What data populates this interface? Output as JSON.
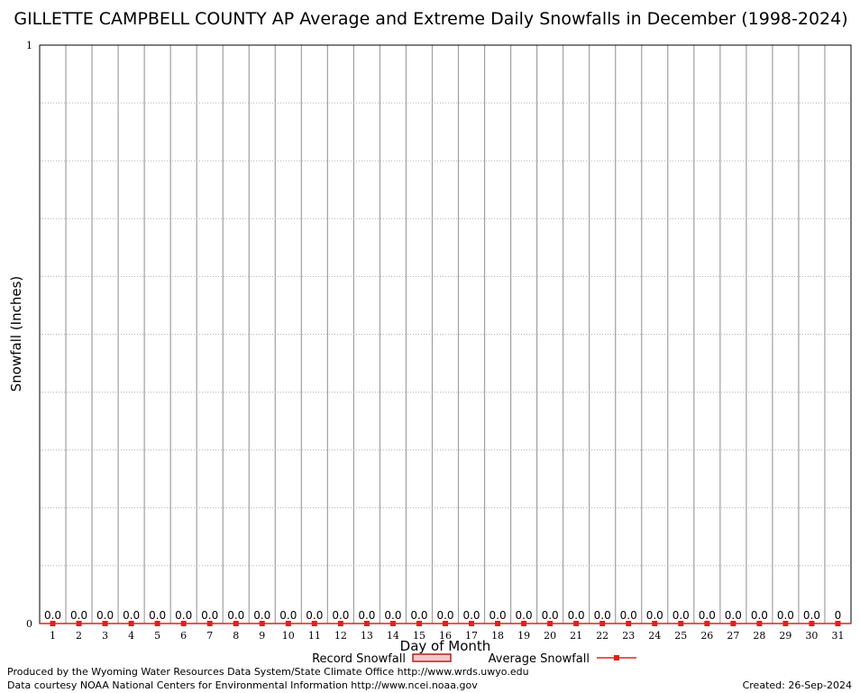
{
  "chart_data": {
    "type": "bar",
    "title": "GILLETTE CAMPBELL COUNTY AP Average and Extreme Daily Snowfalls in December (1998-2024)",
    "xlabel": "Day of Month",
    "ylabel": "Snowfall (Inches)",
    "ylim": [
      0,
      1
    ],
    "y_ticks": [
      "0",
      "1"
    ],
    "grid": true,
    "legend_position": "bottom",
    "categories": [
      "1",
      "2",
      "3",
      "4",
      "5",
      "6",
      "7",
      "8",
      "9",
      "10",
      "11",
      "12",
      "13",
      "14",
      "15",
      "16",
      "17",
      "18",
      "19",
      "20",
      "21",
      "22",
      "23",
      "24",
      "25",
      "26",
      "27",
      "28",
      "29",
      "30",
      "31"
    ],
    "series": [
      {
        "name": "Record Snowfall",
        "values": [
          0,
          0,
          0,
          0,
          0,
          0,
          0,
          0,
          0,
          0,
          0,
          0,
          0,
          0,
          0,
          0,
          0,
          0,
          0,
          0,
          0,
          0,
          0,
          0,
          0,
          0,
          0,
          0,
          0,
          0,
          0
        ]
      },
      {
        "name": "Average Snowfall",
        "values": [
          0,
          0,
          0,
          0,
          0,
          0,
          0,
          0,
          0,
          0,
          0,
          0,
          0,
          0,
          0,
          0,
          0,
          0,
          0,
          0,
          0,
          0,
          0,
          0,
          0,
          0,
          0,
          0,
          0,
          0,
          0
        ]
      }
    ],
    "data_labels": [
      "0.0",
      "0.0",
      "0.0",
      "0.0",
      "0.0",
      "0.0",
      "0.0",
      "0.0",
      "0.0",
      "0.0",
      "0.0",
      "0.0",
      "0.0",
      "0.0",
      "0.0",
      "0.0",
      "0.0",
      "0.0",
      "0.0",
      "0.0",
      "0.0",
      "0.0",
      "0.0",
      "0.0",
      "0.0",
      "0.0",
      "0.0",
      "0.0",
      "0.0",
      "0.0",
      "0"
    ],
    "colors": {
      "average": "#e02020",
      "record": "#b22222",
      "grid": "#a0a0a0"
    }
  },
  "footer": {
    "line1": "Produced by the Wyoming Water Resources Data System/State Climate Office http://www.wrds.uwyo.edu",
    "line2": "Data courtesy NOAA National Centers for Environmental Information http://www.ncei.noaa.gov",
    "created": "Created:  26-Sep-2024"
  }
}
